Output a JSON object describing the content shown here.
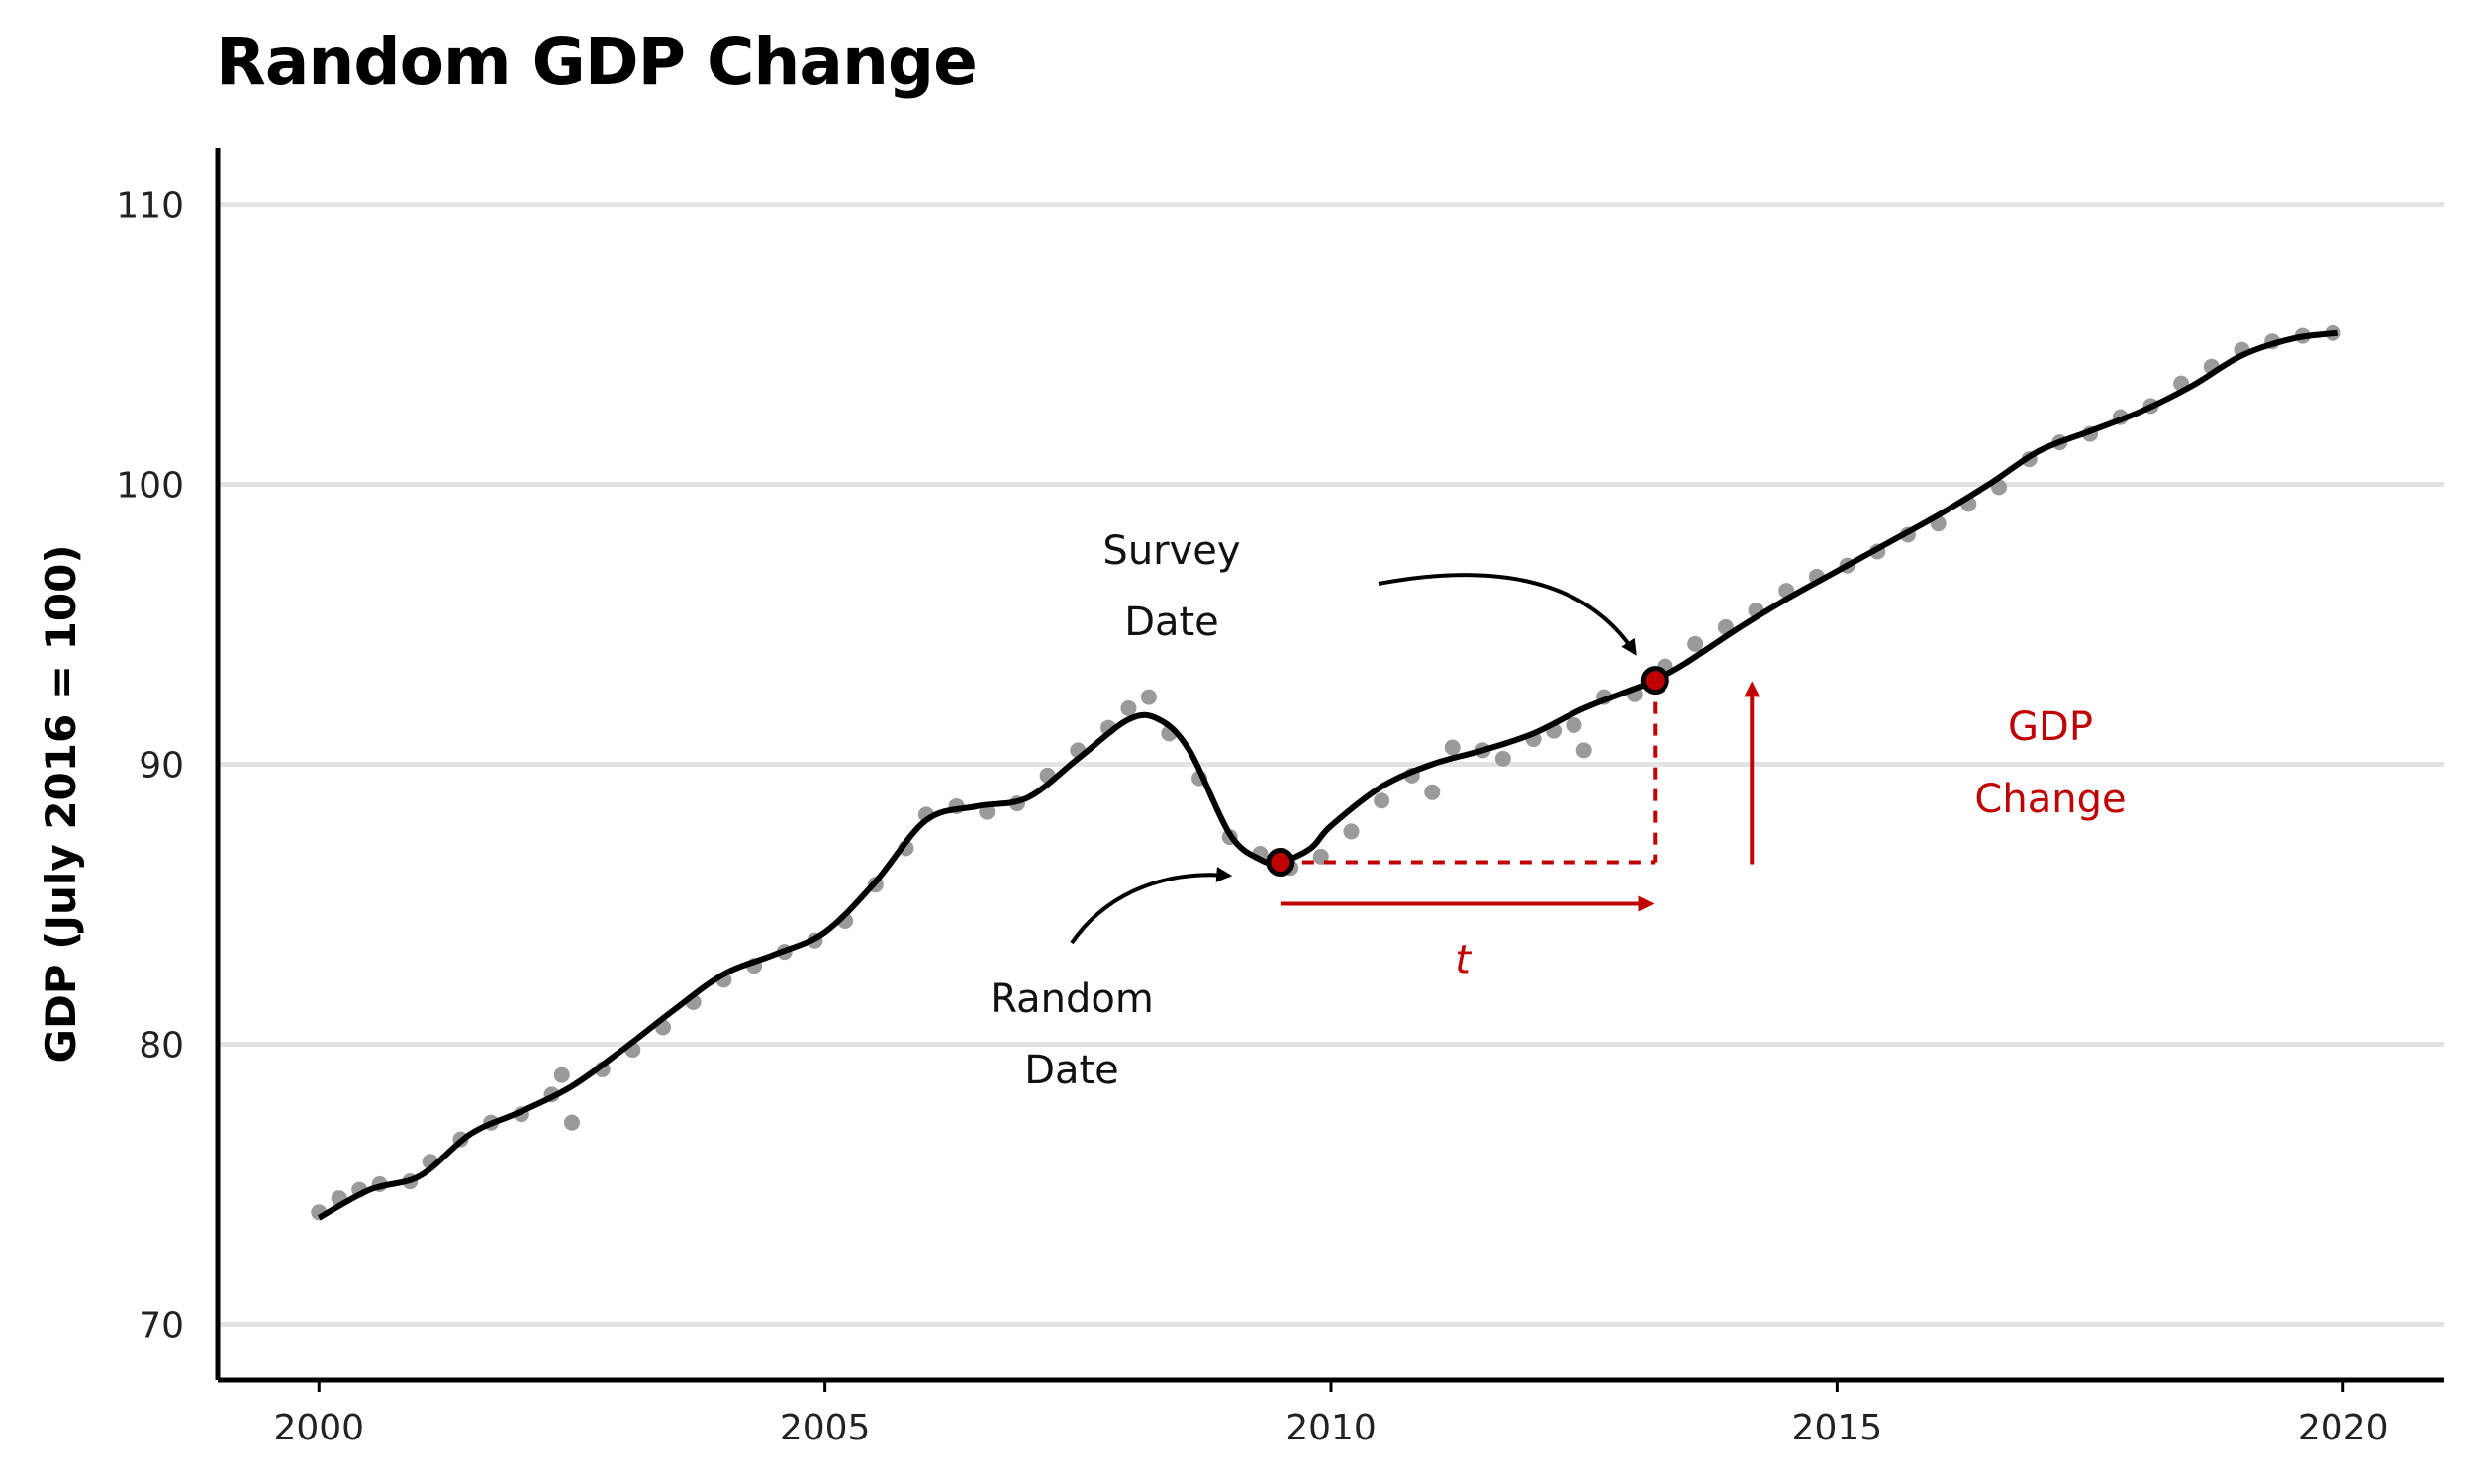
{
  "chart_data": {
    "type": "line",
    "title": "Random GDP Change",
    "xlabel": "",
    "ylabel": "GDP (July 2016 = 100)",
    "xlim": [
      1999.0,
      2021.0
    ],
    "ylim": [
      68.0,
      112.0
    ],
    "x_ticks": [
      2000,
      2005,
      2010,
      2015,
      2020
    ],
    "y_ticks": [
      70,
      80,
      90,
      100,
      110
    ],
    "grid": "horizontal",
    "colors": {
      "trend": "#000000",
      "points": "#9a9a9a",
      "highlight": "#c00000"
    },
    "trend_line": {
      "x": [
        2000.0,
        2000.5,
        2001.0,
        2001.5,
        2002.0,
        2002.5,
        2003.0,
        2003.5,
        2004.0,
        2004.5,
        2005.0,
        2005.5,
        2006.0,
        2006.5,
        2007.0,
        2007.5,
        2008.0,
        2008.3,
        2008.6,
        2009.0,
        2009.3,
        2009.5,
        2009.8,
        2010.0,
        2010.5,
        2011.0,
        2011.5,
        2012.0,
        2012.5,
        2013.0,
        2013.2,
        2013.5,
        2014.0,
        2014.5,
        2015.0,
        2015.5,
        2016.0,
        2016.5,
        2017.0,
        2017.5,
        2018.0,
        2018.5,
        2019.0,
        2019.5,
        2019.95
      ],
      "y": [
        73.8,
        74.8,
        75.3,
        76.8,
        77.6,
        78.5,
        79.8,
        81.2,
        82.5,
        83.2,
        84.0,
        85.8,
        88.0,
        88.5,
        88.8,
        90.2,
        91.6,
        91.6,
        90.5,
        87.5,
        86.6,
        86.5,
        87.0,
        87.8,
        89.2,
        90.0,
        90.5,
        91.1,
        92.0,
        92.7,
        93.0,
        93.6,
        94.8,
        95.9,
        96.9,
        97.9,
        98.9,
        100.0,
        101.2,
        101.9,
        102.6,
        103.5,
        104.6,
        105.2,
        105.4
      ]
    },
    "points": {
      "x": [
        2000.0,
        2000.2,
        2000.4,
        2000.6,
        2000.9,
        2001.1,
        2001.4,
        2001.7,
        2002.0,
        2002.3,
        2002.4,
        2002.5,
        2002.8,
        2003.1,
        2003.4,
        2003.7,
        2004.0,
        2004.3,
        2004.6,
        2004.9,
        2005.2,
        2005.5,
        2005.8,
        2006.0,
        2006.3,
        2006.6,
        2006.9,
        2007.2,
        2007.5,
        2007.8,
        2008.0,
        2008.2,
        2008.4,
        2008.7,
        2009.0,
        2009.3,
        2009.6,
        2009.9,
        2010.2,
        2010.5,
        2010.8,
        2011.0,
        2011.2,
        2011.5,
        2011.7,
        2012.0,
        2012.2,
        2012.4,
        2012.5,
        2012.7,
        2013.0,
        2013.3,
        2013.6,
        2013.9,
        2014.2,
        2014.5,
        2014.8,
        2015.1,
        2015.4,
        2015.7,
        2016.0,
        2016.3,
        2016.6,
        2016.9,
        2017.2,
        2017.5,
        2017.8,
        2018.1,
        2018.4,
        2018.7,
        2019.0,
        2019.3,
        2019.6,
        2019.9
      ],
      "y": [
        74.0,
        74.5,
        74.8,
        75.0,
        75.1,
        75.8,
        76.6,
        77.2,
        77.5,
        78.2,
        78.9,
        77.2,
        79.1,
        79.8,
        80.6,
        81.5,
        82.3,
        82.8,
        83.3,
        83.7,
        84.4,
        85.7,
        87.0,
        88.2,
        88.5,
        88.3,
        88.6,
        89.6,
        90.5,
        91.3,
        92.0,
        92.4,
        91.1,
        89.5,
        87.4,
        86.8,
        86.3,
        86.7,
        87.6,
        88.7,
        89.6,
        89.0,
        90.6,
        90.5,
        90.2,
        90.9,
        91.2,
        91.4,
        90.5,
        92.4,
        92.5,
        93.5,
        94.3,
        94.9,
        95.5,
        96.2,
        96.7,
        97.1,
        97.6,
        98.2,
        98.6,
        99.3,
        99.9,
        100.9,
        101.5,
        101.8,
        102.4,
        102.8,
        103.6,
        104.2,
        104.8,
        105.1,
        105.3,
        105.4
      ]
    },
    "random_date": {
      "x": 2009.5,
      "y": 86.5
    },
    "survey_date": {
      "x": 2013.2,
      "y": 93.0
    },
    "annotations": {
      "survey": [
        "Survey",
        "Date"
      ],
      "random": [
        "Random",
        "Date"
      ],
      "t": "t",
      "gdp_change": [
        "GDP",
        "Change"
      ]
    }
  }
}
